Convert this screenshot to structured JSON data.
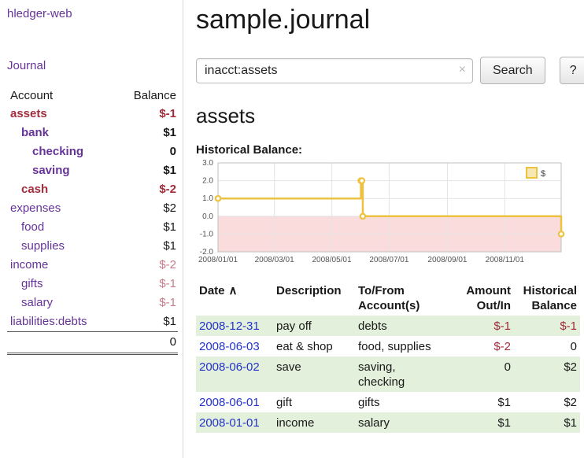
{
  "colors": {
    "link_purple": "#663399",
    "date_link_blue": "#2433cc",
    "negative_dark_red": "#a22c3c",
    "negative_light_red": "#c8798a",
    "row_stripe_green": "#e2f0dc",
    "chart_line_yellow": "#edc240",
    "chart_negative_region_pink": "#fbdcdc"
  },
  "sidebar": {
    "app_title": "hledger-web",
    "journal_link": "Journal",
    "columns": {
      "account": "Account",
      "balance": "Balance"
    },
    "accounts": [
      {
        "name": "assets",
        "indent": 0,
        "bold": true,
        "name_negative": true,
        "balance": "$-1",
        "balance_negative": true
      },
      {
        "name": "bank",
        "indent": 1,
        "bold": true,
        "name_negative": false,
        "balance": "$1",
        "balance_negative": false
      },
      {
        "name": "checking",
        "indent": 2,
        "bold": true,
        "name_negative": false,
        "balance": "0",
        "balance_negative": false
      },
      {
        "name": "saving",
        "indent": 2,
        "bold": true,
        "name_negative": false,
        "balance": "$1",
        "balance_negative": false
      },
      {
        "name": "cash",
        "indent": 1,
        "bold": true,
        "name_negative": true,
        "balance": "$-2",
        "balance_negative": true
      },
      {
        "name": "expenses",
        "indent": 0,
        "bold": false,
        "name_negative": false,
        "balance": "$2",
        "balance_negative": false
      },
      {
        "name": "food",
        "indent": 1,
        "bold": false,
        "name_negative": false,
        "balance": "$1",
        "balance_negative": false
      },
      {
        "name": "supplies",
        "indent": 1,
        "bold": false,
        "name_negative": false,
        "balance": "$1",
        "balance_negative": false
      },
      {
        "name": "income",
        "indent": 0,
        "bold": false,
        "name_negative": false,
        "balance": "$-2",
        "balance_negative": true
      },
      {
        "name": "gifts",
        "indent": 1,
        "bold": false,
        "name_negative": false,
        "balance": "$-1",
        "balance_negative": true
      },
      {
        "name": "salary",
        "indent": 1,
        "bold": false,
        "name_negative": false,
        "balance": "$-1",
        "balance_negative": true
      },
      {
        "name": "liabilities:debts",
        "indent": 0,
        "bold": false,
        "name_negative": false,
        "balance": "$1",
        "balance_negative": false
      }
    ],
    "total": "0"
  },
  "main": {
    "title": "sample.journal",
    "search": {
      "value": "inacct:assets",
      "clear_icon": "×",
      "search_button": "Search",
      "help_button": "?"
    },
    "account_heading": "assets",
    "chart_title": "Historical Balance:"
  },
  "chart_data": {
    "type": "line",
    "step": true,
    "title": "Historical Balance",
    "legend": [
      {
        "label": "$",
        "color": "#edc240"
      }
    ],
    "legend_position": "top-right",
    "grid": true,
    "series": [
      {
        "name": "$",
        "points": [
          {
            "date": "2008-01-01",
            "day": 0,
            "value": 1
          },
          {
            "date": "2008-06-01",
            "day": 152,
            "value": 2
          },
          {
            "date": "2008-06-02",
            "day": 153,
            "value": 2
          },
          {
            "date": "2008-06-03",
            "day": 154,
            "value": 0
          },
          {
            "date": "2008-12-31",
            "day": 365,
            "value": -1
          }
        ]
      }
    ],
    "x_ticks": [
      {
        "label": "2008/01/01",
        "day": 0
      },
      {
        "label": "2008/03/01",
        "day": 60
      },
      {
        "label": "2008/05/01",
        "day": 121
      },
      {
        "label": "2008/07/01",
        "day": 182
      },
      {
        "label": "2008/09/01",
        "day": 244
      },
      {
        "label": "2008/11/01",
        "day": 305
      }
    ],
    "x_domain": [
      0,
      365
    ],
    "y_ticks": [
      "3.0",
      "2.0",
      "1.0",
      "0.0",
      "-1.0",
      "-2.0"
    ],
    "ylim": [
      -2,
      3
    ],
    "line_color": "#edc240",
    "negative_region_color": "#fbdcdc"
  },
  "register": {
    "headers": {
      "date": "Date",
      "sort_indicator": "∧",
      "description": "Description",
      "accounts": "To/From Account(s)",
      "amount": "Amount Out/In",
      "balance": "Historical Balance"
    },
    "rows": [
      {
        "date": "2008-12-31",
        "description": "pay off",
        "accounts": [
          "debts"
        ],
        "amount": "$-1",
        "amount_negative": true,
        "balance": "$-1",
        "balance_negative": true
      },
      {
        "date": "2008-06-03",
        "description": "eat & shop",
        "accounts": [
          "food, supplies"
        ],
        "amount": "$-2",
        "amount_negative": true,
        "balance": "0",
        "balance_negative": false
      },
      {
        "date": "2008-06-02",
        "description": "save",
        "accounts": [
          "saving,",
          "checking"
        ],
        "amount": "0",
        "amount_negative": false,
        "balance": "$2",
        "balance_negative": false
      },
      {
        "date": "2008-06-01",
        "description": "gift",
        "accounts": [
          "gifts"
        ],
        "amount": "$1",
        "amount_negative": false,
        "balance": "$2",
        "balance_negative": false
      },
      {
        "date": "2008-01-01",
        "description": "income",
        "accounts": [
          "salary"
        ],
        "amount": "$1",
        "amount_negative": false,
        "balance": "$1",
        "balance_negative": false
      }
    ]
  }
}
